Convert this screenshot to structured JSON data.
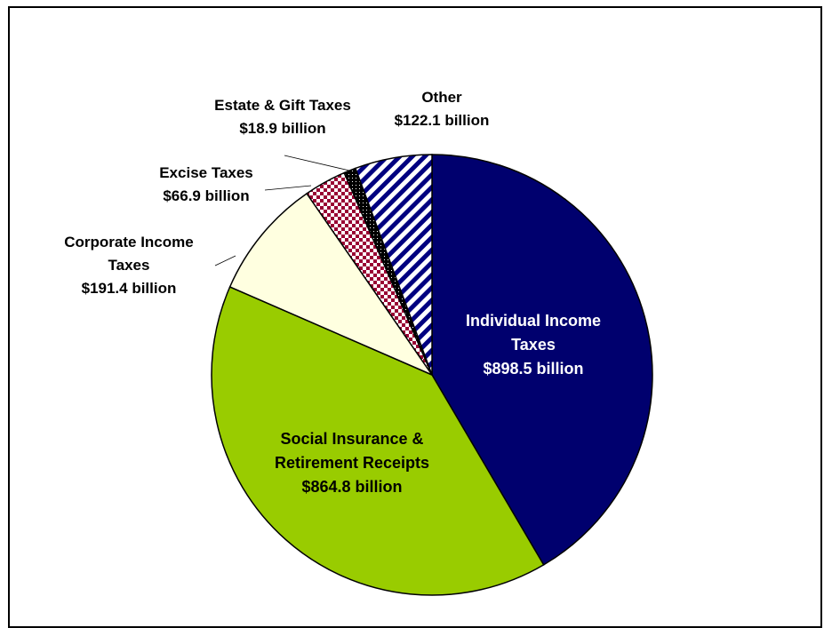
{
  "chart_data": {
    "type": "pie",
    "title": "",
    "slices": [
      {
        "label_lines": [
          "Individual Income",
          "Taxes",
          "$898.5 billion"
        ],
        "value": 898.5,
        "color": "#00006e",
        "pattern": "none"
      },
      {
        "label_lines": [
          "Social Insurance &",
          "Retirement Receipts",
          "$864.8 billion"
        ],
        "value": 864.8,
        "color": "#99cc00",
        "pattern": "none"
      },
      {
        "label_lines": [
          "Corporate Income",
          "Taxes",
          "$191.4 billion"
        ],
        "value": 191.4,
        "color": "#ffffe0",
        "pattern": "none"
      },
      {
        "label_lines": [
          "Excise Taxes",
          "$66.9 billion"
        ],
        "value": 66.9,
        "color": "#990033",
        "pattern": "checker"
      },
      {
        "label_lines": [
          "Estate & Gift Taxes",
          "$18.9 billion"
        ],
        "value": 18.9,
        "color": "#000000",
        "pattern": "dots"
      },
      {
        "label_lines": [
          "Other",
          "$122.1 billion"
        ],
        "value": 122.1,
        "color": "#000080",
        "pattern": "diagonal-stripes"
      }
    ]
  }
}
